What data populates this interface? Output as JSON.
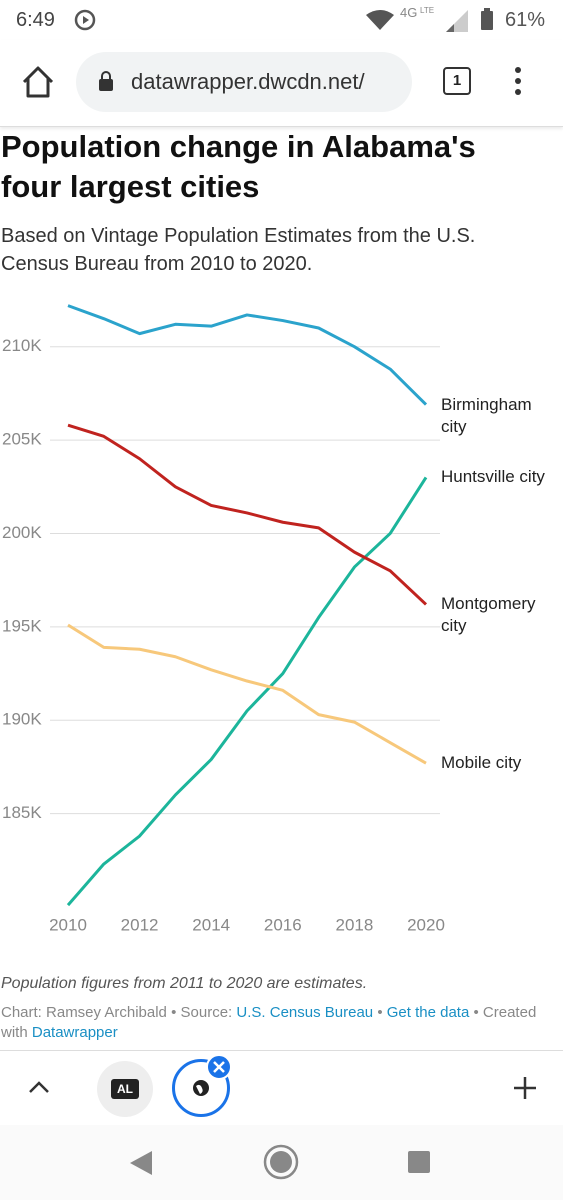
{
  "status_bar": {
    "time": "6:49",
    "network": "4G",
    "network_sub": "LTE",
    "battery": "61%"
  },
  "browser": {
    "url": "datawrapper.dwcdn.net/",
    "tab_count": 1
  },
  "chart_data": {
    "type": "line",
    "title": "Population change in Alabama's four largest cities",
    "subtitle": "Based on Vintage Population Estimates from the U.S. Census Bureau from 2010 to 2020.",
    "x": [
      2010,
      2011,
      2012,
      2013,
      2014,
      2015,
      2016,
      2017,
      2018,
      2019,
      2020
    ],
    "xlim": [
      2010,
      2020
    ],
    "xticks": [
      2010,
      2012,
      2014,
      2016,
      2018,
      2020
    ],
    "ylim": [
      180000,
      212500
    ],
    "yticks": [
      {
        "value": 185000,
        "label": "185K"
      },
      {
        "value": 190000,
        "label": "190K"
      },
      {
        "value": 195000,
        "label": "195K"
      },
      {
        "value": 200000,
        "label": "200K"
      },
      {
        "value": 205000,
        "label": "205K"
      },
      {
        "value": 210000,
        "label": "210K"
      }
    ],
    "grid": true,
    "series": [
      {
        "name": "Birmingham city",
        "color": "#2ba3cc",
        "values": [
          212200,
          211500,
          210700,
          211200,
          211100,
          211700,
          211400,
          211000,
          210000,
          208800,
          206900
        ]
      },
      {
        "name": "Huntsville city",
        "color": "#1cb59b",
        "values": [
          180100,
          182300,
          183800,
          186000,
          187900,
          190500,
          192500,
          195500,
          198200,
          200000,
          203000
        ]
      },
      {
        "name": "Montgomery city",
        "color": "#c0231f",
        "values": [
          205800,
          205200,
          204000,
          202500,
          201500,
          201100,
          200600,
          200300,
          199000,
          198000,
          196200
        ]
      },
      {
        "name": "Mobile city",
        "color": "#f7c87b",
        "values": [
          195100,
          193900,
          193800,
          193400,
          192700,
          192100,
          191600,
          190300,
          189900,
          188800,
          187700
        ]
      }
    ]
  },
  "footer": {
    "note": "Population figures from 2011 to 2020 are estimates.",
    "credit_prefix": "Chart: Ramsey Archibald",
    "separator": "•",
    "source_label": "Source:",
    "source_link": "U.S. Census Bureau",
    "data_link": "Get the data",
    "created_label": "Created with",
    "created_link": "Datawrapper"
  },
  "tab_bar": {
    "tab_label": "AL"
  }
}
